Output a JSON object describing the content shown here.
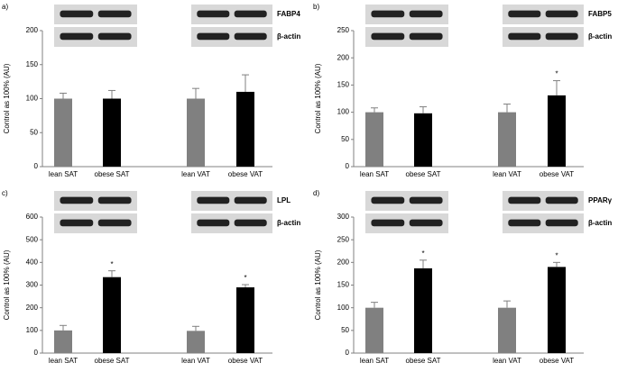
{
  "chart_data": [
    {
      "type": "bar",
      "panel_label": "a)",
      "ylabel": "Control as 100% (AU)",
      "blot_labels": [
        "FABP4",
        "β-actin"
      ],
      "categories": [
        "lean SAT",
        "obese SAT",
        "lean VAT",
        "obese VAT"
      ],
      "values": [
        100,
        100,
        100,
        110
      ],
      "errors": [
        8,
        12,
        15,
        25
      ],
      "colors": [
        "#808080",
        "#000000",
        "#808080",
        "#000000"
      ],
      "significance": [
        null,
        null,
        null,
        null
      ],
      "ylim": [
        0,
        200
      ],
      "yticks": [
        0,
        50,
        100,
        150,
        200
      ]
    },
    {
      "type": "bar",
      "panel_label": "b)",
      "ylabel": "Control as 100% (AU)",
      "blot_labels": [
        "FABP5",
        "β-actin"
      ],
      "categories": [
        "lean SAT",
        "obese SAT",
        "lean VAT",
        "obese VAT"
      ],
      "values": [
        100,
        98,
        100,
        131
      ],
      "errors": [
        8,
        12,
        15,
        27
      ],
      "colors": [
        "#808080",
        "#000000",
        "#808080",
        "#000000"
      ],
      "significance": [
        null,
        null,
        null,
        "*"
      ],
      "ylim": [
        0,
        250
      ],
      "yticks": [
        0,
        50,
        100,
        150,
        200,
        250
      ]
    },
    {
      "type": "bar",
      "panel_label": "c)",
      "ylabel": "Control as 100% (AU)",
      "blot_labels": [
        "LPL",
        "β-actin"
      ],
      "categories": [
        "lean SAT",
        "obese SAT",
        "lean VAT",
        "obese VAT"
      ],
      "values": [
        100,
        335,
        98,
        290
      ],
      "errors": [
        22,
        28,
        20,
        12
      ],
      "colors": [
        "#808080",
        "#000000",
        "#808080",
        "#000000"
      ],
      "significance": [
        null,
        "*",
        null,
        "*"
      ],
      "ylim": [
        0,
        600
      ],
      "yticks": [
        0,
        100,
        200,
        300,
        400,
        500,
        600
      ]
    },
    {
      "type": "bar",
      "panel_label": "d)",
      "ylabel": "Control as 100% (AU)",
      "blot_labels": [
        "PPARγ",
        "β-actin"
      ],
      "categories": [
        "lean SAT",
        "obese SAT",
        "lean VAT",
        "obese VAT"
      ],
      "values": [
        100,
        187,
        100,
        190
      ],
      "errors": [
        12,
        18,
        15,
        10
      ],
      "colors": [
        "#808080",
        "#000000",
        "#808080",
        "#000000"
      ],
      "significance": [
        null,
        "*",
        null,
        "*"
      ],
      "ylim": [
        0,
        300
      ],
      "yticks": [
        0,
        50,
        100,
        150,
        200,
        250,
        300
      ]
    }
  ]
}
